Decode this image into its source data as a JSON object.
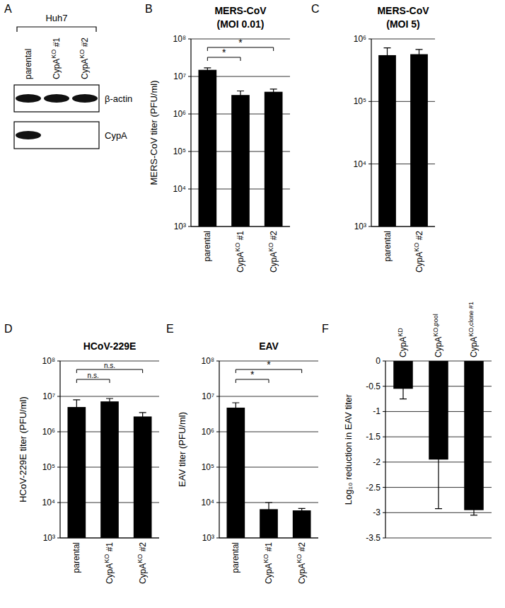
{
  "chart_data": [
    {
      "panel": "A",
      "type": "blot",
      "title": "Huh7",
      "categories": [
        "parental",
        "CypAKO #1",
        "CypAKO #2"
      ],
      "series": [
        {
          "name": "β-actin",
          "values": [
            1,
            1,
            1
          ]
        },
        {
          "name": "CypA",
          "values": [
            1,
            0,
            0
          ]
        }
      ]
    },
    {
      "panel": "B",
      "type": "bar",
      "title": "MERS-CoV",
      "subtitle": "(MOI 0.01)",
      "y_label": "MERS-CoV titer (PFU/ml)",
      "categories": [
        "parental",
        "CypAKO #1",
        "CypAKO #2"
      ],
      "values": [
        15000000,
        3200000,
        3900000
      ],
      "errors": [
        2000000,
        900000,
        700000
      ],
      "color": "#000000",
      "log": "y",
      "grid": true,
      "ylim": [
        1000,
        100000000
      ],
      "yticks": [
        {
          "value": 1000,
          "label": "10³"
        },
        {
          "value": 10000,
          "label": "10⁴"
        },
        {
          "value": 100000,
          "label": "10⁵"
        },
        {
          "value": 1000000,
          "label": "10⁶"
        },
        {
          "value": 10000000,
          "label": "10⁷"
        },
        {
          "value": 100000000,
          "label": "10⁸"
        }
      ],
      "annotations": [
        {
          "text": "*",
          "between": [
            0,
            1
          ]
        },
        {
          "text": "*",
          "between": [
            0,
            2
          ]
        }
      ]
    },
    {
      "panel": "C",
      "type": "bar",
      "title": "MERS-CoV",
      "subtitle": "(MOI 5)",
      "categories": [
        "parental",
        "CypAKO #2"
      ],
      "values": [
        550000,
        570000
      ],
      "errors": [
        170000,
        110000
      ],
      "color": "#000000",
      "log": "y",
      "grid": true,
      "ylim": [
        1000,
        1000000
      ],
      "yticks": [
        {
          "value": 1000,
          "label": "10³"
        },
        {
          "value": 10000,
          "label": "10⁴"
        },
        {
          "value": 100000,
          "label": "10⁵"
        },
        {
          "value": 1000000,
          "label": "10⁶"
        }
      ]
    },
    {
      "panel": "D",
      "type": "bar",
      "title": "HCoV-229E",
      "y_label": "HCoV-229E titer (PFU/ml)",
      "categories": [
        "parental",
        "CypAKO #1",
        "CypAKO #2"
      ],
      "values": [
        5000000,
        7200000,
        2700000
      ],
      "errors": [
        3000000,
        1500000,
        800000
      ],
      "color": "#000000",
      "log": "y",
      "grid": true,
      "ylim": [
        1000,
        100000000
      ],
      "yticks": [
        {
          "value": 1000,
          "label": "10³"
        },
        {
          "value": 10000,
          "label": "10⁴"
        },
        {
          "value": 100000,
          "label": "10⁵"
        },
        {
          "value": 1000000,
          "label": "10⁶"
        },
        {
          "value": 10000000,
          "label": "10⁷"
        },
        {
          "value": 100000000,
          "label": "10⁸"
        }
      ],
      "annotations": [
        {
          "text": "n.s.",
          "between": [
            0,
            1
          ]
        },
        {
          "text": "n.s.",
          "between": [
            0,
            2
          ]
        }
      ]
    },
    {
      "panel": "E",
      "type": "bar",
      "title": "EAV",
      "y_label": "EAV titer (PFU/ml)",
      "categories": [
        "parental",
        "CypAKO #1",
        "CypAKO #2"
      ],
      "values": [
        4800000,
        6500,
        6000
      ],
      "errors": [
        1800000,
        3500,
        800
      ],
      "color": "#000000",
      "log": "y",
      "grid": true,
      "ylim": [
        1000,
        100000000
      ],
      "yticks": [
        {
          "value": 1000,
          "label": "10³"
        },
        {
          "value": 10000,
          "label": "10⁴"
        },
        {
          "value": 100000,
          "label": "10⁵"
        },
        {
          "value": 1000000,
          "label": "10⁶"
        },
        {
          "value": 10000000,
          "label": "10⁷"
        },
        {
          "value": 100000000,
          "label": "10⁸"
        }
      ],
      "annotations": [
        {
          "text": "*",
          "between": [
            0,
            1
          ]
        },
        {
          "text": "*",
          "between": [
            0,
            2
          ]
        }
      ]
    },
    {
      "panel": "F",
      "type": "bar",
      "y_label": "Log₁₀ reduction in EAV titer",
      "categories": [
        "CypAKD",
        "CypAKO,pool",
        "CypAKO,clone #1"
      ],
      "values": [
        -0.55,
        -1.95,
        -2.95
      ],
      "errors": [
        0.2,
        0.97,
        0.1
      ],
      "color": "#000000",
      "grid": true,
      "ylim": [
        -3.5,
        0
      ],
      "yticks": [
        0,
        -0.5,
        -1,
        -1.5,
        -2,
        -2.5,
        -3,
        -3.5
      ]
    }
  ]
}
